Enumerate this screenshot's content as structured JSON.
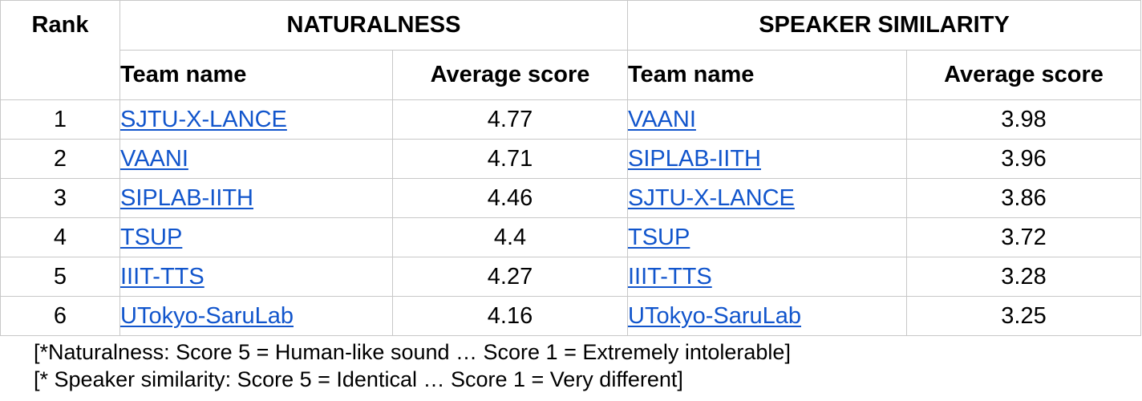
{
  "table": {
    "rank_header": "Rank",
    "naturalness_header": "NATURALNESS",
    "similarity_header": "SPEAKER SIMILARITY",
    "team_name_header": "Team name",
    "average_score_header": "Average score",
    "rows": [
      {
        "rank": "1",
        "nat_team": "SJTU-X-LANCE",
        "nat_score": "4.77",
        "sim_team": "VAANI",
        "sim_score": "3.98"
      },
      {
        "rank": "2",
        "nat_team": "VAANI",
        "nat_score": "4.71",
        "sim_team": "SIPLAB-IITH",
        "sim_score": "3.96"
      },
      {
        "rank": "3",
        "nat_team": "SIPLAB-IITH",
        "nat_score": "4.46",
        "sim_team": "SJTU-X-LANCE",
        "sim_score": "3.86"
      },
      {
        "rank": "4",
        "nat_team": "TSUP",
        "nat_score": "4.4",
        "sim_team": "TSUP",
        "sim_score": "3.72"
      },
      {
        "rank": "5",
        "nat_team": "IIIT-TTS",
        "nat_score": "4.27",
        "sim_team": "IIIT-TTS",
        "sim_score": "3.28"
      },
      {
        "rank": "6",
        "nat_team": "UTokyo-SaruLab",
        "nat_score": "4.16",
        "sim_team": "UTokyo-SaruLab",
        "sim_score": "3.25"
      }
    ]
  },
  "notes": {
    "naturalness": "[*Naturalness: Score 5 = Human-like sound … Score 1 = Extremely intolerable]",
    "similarity": "[* Speaker similarity: Score 5 = Identical … Score 1 = Very different]"
  },
  "colors": {
    "link": "#1155cc",
    "border": "#c8c8c8"
  }
}
